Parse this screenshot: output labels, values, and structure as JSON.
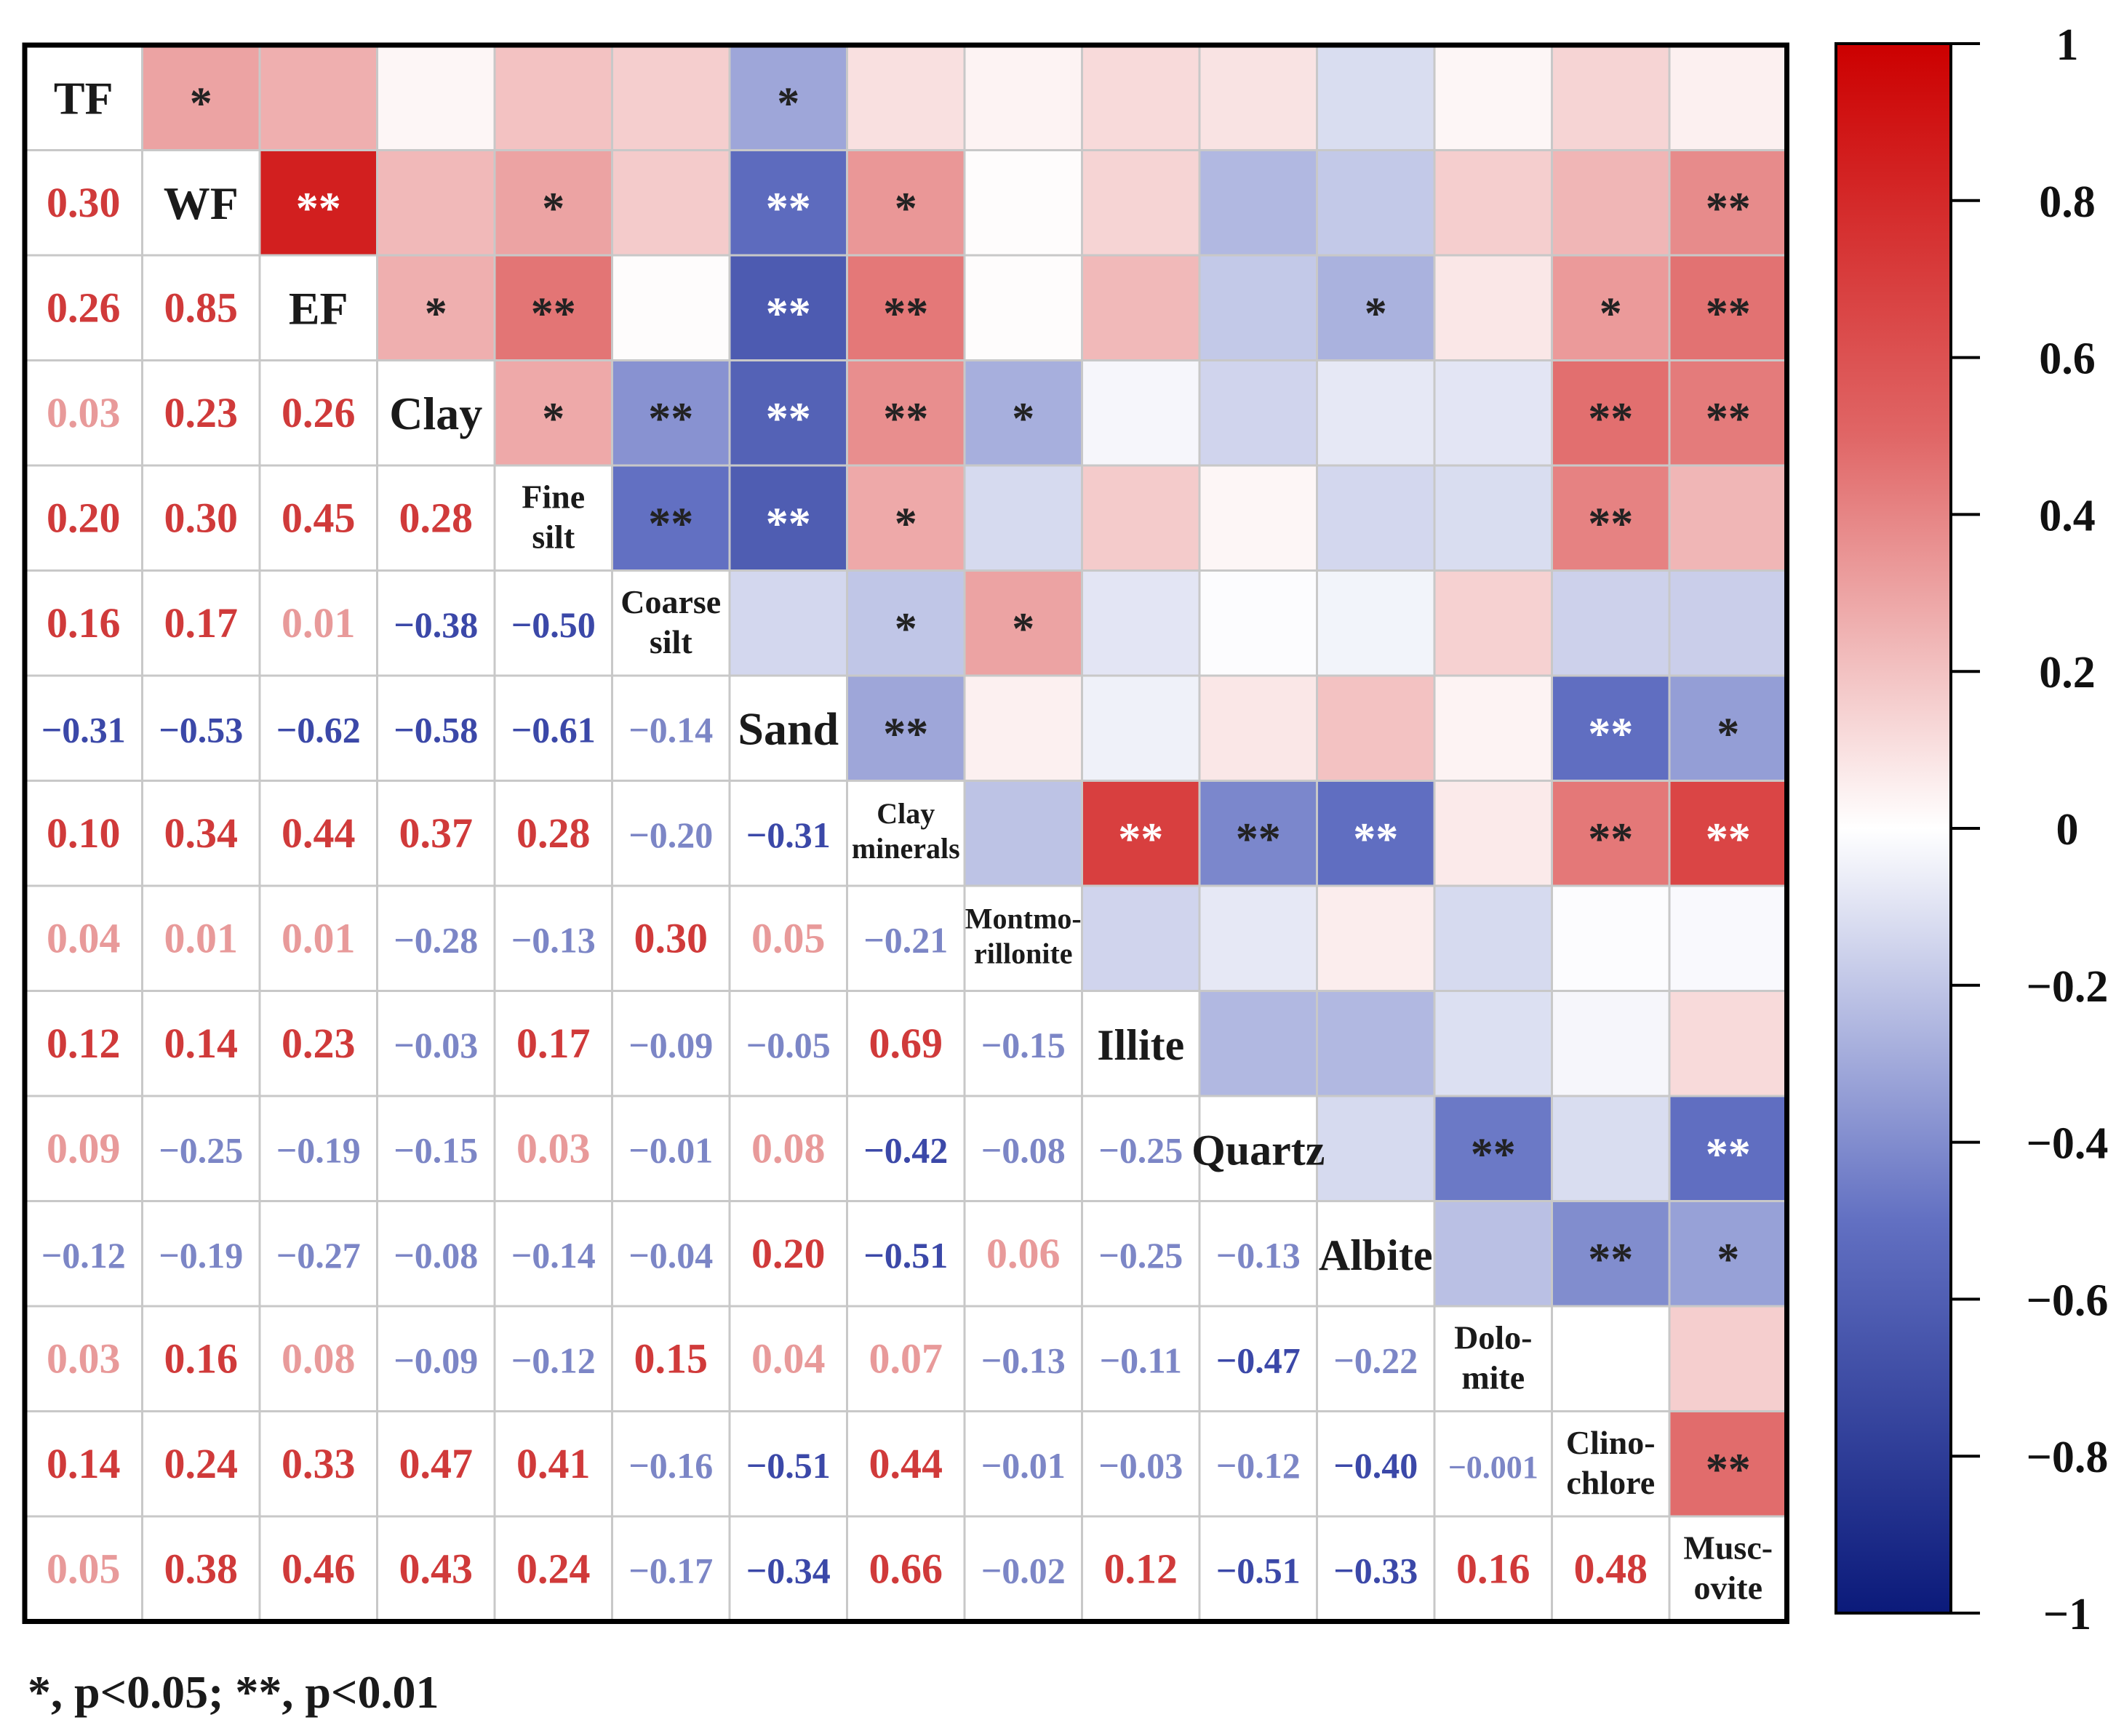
{
  "chart_data": {
    "type": "heatmap",
    "title": "",
    "variables": [
      {
        "id": "TF",
        "label_lines": [
          "TF"
        ]
      },
      {
        "id": "WF",
        "label_lines": [
          "WF"
        ]
      },
      {
        "id": "EF",
        "label_lines": [
          "EF"
        ]
      },
      {
        "id": "Clay",
        "label_lines": [
          "Clay"
        ]
      },
      {
        "id": "Fine silt",
        "label_lines": [
          "Fine",
          "silt"
        ]
      },
      {
        "id": "Coarse silt",
        "label_lines": [
          "Coarse",
          "silt"
        ]
      },
      {
        "id": "Sand",
        "label_lines": [
          "Sand"
        ]
      },
      {
        "id": "Clay minerals",
        "label_lines": [
          "Clay",
          "minerals"
        ]
      },
      {
        "id": "Montmorillonite",
        "label_lines": [
          "Montmo-",
          "rillonite"
        ]
      },
      {
        "id": "Illite",
        "label_lines": [
          "Illite"
        ]
      },
      {
        "id": "Quartz",
        "label_lines": [
          "Quartz"
        ]
      },
      {
        "id": "Albite",
        "label_lines": [
          "Albite"
        ]
      },
      {
        "id": "Dolomite",
        "label_lines": [
          "Dolo-",
          "mite"
        ]
      },
      {
        "id": "Clinochlore",
        "label_lines": [
          "Clino-",
          "chlore"
        ]
      },
      {
        "id": "Muscovite",
        "label_lines": [
          "Musc-",
          "ovite"
        ]
      }
    ],
    "lower_labels": [
      [],
      [
        "0.30"
      ],
      [
        "0.26",
        "0.85"
      ],
      [
        "0.03",
        "0.23",
        "0.26"
      ],
      [
        "0.20",
        "0.30",
        "0.45",
        "0.28"
      ],
      [
        "0.16",
        "0.17",
        "0.01",
        "−0.38",
        "−0.50"
      ],
      [
        "−0.31",
        "−0.53",
        "−0.62",
        "−0.58",
        "−0.61",
        "−0.14"
      ],
      [
        "0.10",
        "0.34",
        "0.44",
        "0.37",
        "0.28",
        "−0.20",
        "−0.31"
      ],
      [
        "0.04",
        "0.01",
        "0.01",
        "−0.28",
        "−0.13",
        "0.30",
        "0.05",
        "−0.21"
      ],
      [
        "0.12",
        "0.14",
        "0.23",
        "−0.03",
        "0.17",
        "−0.09",
        "−0.05",
        "0.69",
        "−0.15"
      ],
      [
        "0.09",
        "−0.25",
        "−0.19",
        "−0.15",
        "0.03",
        "−0.01",
        "0.08",
        "−0.42",
        "−0.08",
        "−0.25"
      ],
      [
        "−0.12",
        "−0.19",
        "−0.27",
        "−0.08",
        "−0.14",
        "−0.04",
        "0.20",
        "−0.51",
        "0.06",
        "−0.25",
        "−0.13"
      ],
      [
        "0.03",
        "0.16",
        "0.08",
        "−0.09",
        "−0.12",
        "0.15",
        "0.04",
        "0.07",
        "−0.13",
        "−0.11",
        "−0.47",
        "−0.22"
      ],
      [
        "0.14",
        "0.24",
        "0.33",
        "0.47",
        "0.41",
        "−0.16",
        "−0.51",
        "0.44",
        "−0.01",
        "−0.03",
        "−0.12",
        "−0.40",
        "−0.001"
      ],
      [
        "0.05",
        "0.38",
        "0.46",
        "0.43",
        "0.24",
        "−0.17",
        "−0.34",
        "0.66",
        "−0.02",
        "0.12",
        "−0.51",
        "−0.33",
        "0.16",
        "0.48"
      ]
    ],
    "significance": [
      [
        "",
        "*",
        "",
        "",
        "",
        "",
        "*",
        "",
        "",
        "",
        "",
        "",
        "",
        "",
        ""
      ],
      [
        "",
        "",
        "**",
        "",
        "*",
        "",
        "**",
        "*",
        "",
        "",
        "",
        "",
        "",
        "",
        "**"
      ],
      [
        "",
        "",
        "",
        "*",
        "**",
        "",
        "**",
        "**",
        "",
        "",
        "",
        "*",
        "",
        "*",
        "**"
      ],
      [
        "",
        "",
        "",
        "",
        "*",
        "**",
        "**",
        "**",
        "*",
        "",
        "",
        "",
        "",
        "**",
        "**"
      ],
      [
        "",
        "",
        "",
        "",
        "",
        "**",
        "**",
        "*",
        "",
        "",
        "",
        "",
        "",
        "**",
        ""
      ],
      [
        "",
        "",
        "",
        "",
        "",
        "",
        "",
        "*",
        "*",
        "",
        "",
        "",
        "",
        "",
        ""
      ],
      [
        "",
        "",
        "",
        "",
        "",
        "",
        "",
        "**",
        "",
        "",
        "",
        "",
        "",
        "**",
        "*"
      ],
      [
        "",
        "",
        "",
        "",
        "",
        "",
        "",
        "",
        "",
        "**",
        "**",
        "**",
        "",
        "**",
        "**"
      ],
      [
        "",
        "",
        "",
        "",
        "",
        "",
        "",
        "",
        "",
        "",
        "",
        "",
        "",
        "",
        ""
      ],
      [
        "",
        "",
        "",
        "",
        "",
        "",
        "",
        "",
        "",
        "",
        "",
        "",
        "",
        "",
        ""
      ],
      [
        "",
        "",
        "",
        "",
        "",
        "",
        "",
        "",
        "",
        "",
        "",
        "",
        "**",
        "",
        "**"
      ],
      [
        "",
        "",
        "",
        "",
        "",
        "",
        "",
        "",
        "",
        "",
        "",
        "",
        "",
        "**",
        "*"
      ],
      [
        "",
        "",
        "",
        "",
        "",
        "",
        "",
        "",
        "",
        "",
        "",
        "",
        "",
        "",
        ""
      ],
      [
        "",
        "",
        "",
        "",
        "",
        "",
        "",
        "",
        "",
        "",
        "",
        "",
        "",
        "",
        "**"
      ],
      [
        "",
        "",
        "",
        "",
        "",
        "",
        "",
        "",
        "",
        "",
        "",
        "",
        "",
        "",
        ""
      ]
    ],
    "colorbar": {
      "range": [
        -1,
        1
      ],
      "ticks": [
        "1",
        "0.8",
        "0.6",
        "0.4",
        "0.2",
        "0",
        "−0.2",
        "−0.4",
        "−0.6",
        "−0.8",
        "−1"
      ],
      "colors": {
        "negative": "#0b1a7a",
        "mid_negative": "#6270c2",
        "zero": "#ffffff",
        "mid_positive": "#e06666",
        "positive": "#cc0000"
      }
    },
    "footnote": "*, p<0.05; **, p<0.01"
  }
}
